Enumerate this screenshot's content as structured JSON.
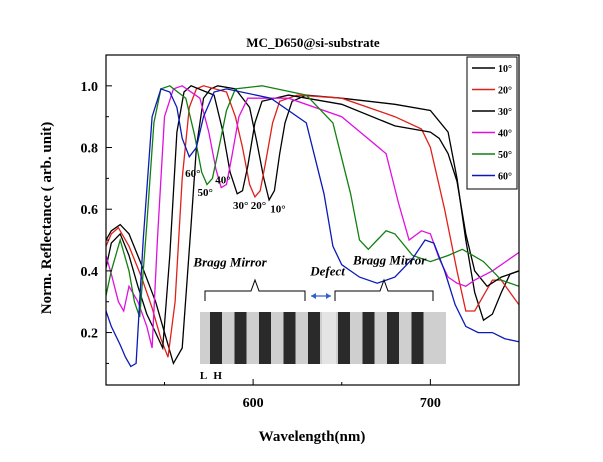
{
  "chart_data": {
    "type": "line",
    "title": "MC_D650@si-substrate",
    "xlabel": "Wavelength(nm)",
    "ylabel": "Norm. Reflectance ( arb. unit)",
    "xlim": [
      517,
      750
    ],
    "ylim": [
      0.03,
      1.1
    ],
    "xticks": [
      600,
      700
    ],
    "yticks": [
      0.2,
      0.4,
      0.6,
      0.8,
      1.0
    ],
    "ytick_labels": [
      "0.2",
      "0.4",
      "0.6",
      "0.8",
      "1.0"
    ],
    "grid": false,
    "legend_position": "top-right",
    "series": [
      {
        "name": "10°",
        "color": "#000000",
        "points": [
          [
            517,
            0.5
          ],
          [
            520,
            0.53
          ],
          [
            525,
            0.55
          ],
          [
            530,
            0.52
          ],
          [
            537,
            0.42
          ],
          [
            545,
            0.3
          ],
          [
            550,
            0.2
          ],
          [
            555,
            0.1
          ],
          [
            560,
            0.15
          ],
          [
            565,
            0.55
          ],
          [
            568,
            0.8
          ],
          [
            572,
            0.96
          ],
          [
            576,
            0.99
          ],
          [
            580,
            1.0
          ],
          [
            590,
            0.99
          ],
          [
            598,
            0.93
          ],
          [
            602,
            0.82
          ],
          [
            606,
            0.7
          ],
          [
            609,
            0.63
          ],
          [
            612,
            0.66
          ],
          [
            615,
            0.78
          ],
          [
            618,
            0.88
          ],
          [
            622,
            0.95
          ],
          [
            630,
            0.97
          ],
          [
            650,
            0.96
          ],
          [
            680,
            0.94
          ],
          [
            700,
            0.92
          ],
          [
            710,
            0.85
          ],
          [
            715,
            0.7
          ],
          [
            720,
            0.5
          ],
          [
            725,
            0.33
          ],
          [
            730,
            0.24
          ],
          [
            735,
            0.26
          ],
          [
            740,
            0.33
          ],
          [
            745,
            0.39
          ],
          [
            750,
            0.4
          ]
        ]
      },
      {
        "name": "20°",
        "color": "#e0201a",
        "points": [
          [
            517,
            0.48
          ],
          [
            520,
            0.52
          ],
          [
            524,
            0.54
          ],
          [
            530,
            0.48
          ],
          [
            537,
            0.38
          ],
          [
            543,
            0.28
          ],
          [
            548,
            0.18
          ],
          [
            552,
            0.12
          ],
          [
            556,
            0.3
          ],
          [
            560,
            0.7
          ],
          [
            564,
            0.93
          ],
          [
            568,
            0.99
          ],
          [
            572,
            1.0
          ],
          [
            585,
            0.98
          ],
          [
            590,
            0.9
          ],
          [
            594,
            0.8
          ],
          [
            598,
            0.68
          ],
          [
            601,
            0.64
          ],
          [
            604,
            0.66
          ],
          [
            607,
            0.75
          ],
          [
            611,
            0.88
          ],
          [
            615,
            0.95
          ],
          [
            625,
            0.97
          ],
          [
            650,
            0.96
          ],
          [
            680,
            0.9
          ],
          [
            695,
            0.86
          ],
          [
            700,
            0.8
          ],
          [
            708,
            0.6
          ],
          [
            715,
            0.4
          ],
          [
            720,
            0.27
          ],
          [
            725,
            0.27
          ],
          [
            730,
            0.32
          ],
          [
            735,
            0.37
          ],
          [
            740,
            0.37
          ],
          [
            745,
            0.33
          ],
          [
            750,
            0.29
          ]
        ]
      },
      {
        "name": "30°",
        "color": "#000000",
        "points": [
          [
            517,
            0.41
          ],
          [
            520,
            0.49
          ],
          [
            525,
            0.52
          ],
          [
            530,
            0.45
          ],
          [
            535,
            0.35
          ],
          [
            540,
            0.26
          ],
          [
            545,
            0.2
          ],
          [
            549,
            0.15
          ],
          [
            553,
            0.45
          ],
          [
            557,
            0.85
          ],
          [
            561,
            0.98
          ],
          [
            565,
            1.0
          ],
          [
            578,
            0.97
          ],
          [
            583,
            0.85
          ],
          [
            587,
            0.72
          ],
          [
            591,
            0.65
          ],
          [
            594,
            0.66
          ],
          [
            597,
            0.74
          ],
          [
            601,
            0.88
          ],
          [
            605,
            0.95
          ],
          [
            620,
            0.97
          ],
          [
            650,
            0.94
          ],
          [
            680,
            0.87
          ],
          [
            700,
            0.85
          ],
          [
            705,
            0.83
          ],
          [
            710,
            0.78
          ],
          [
            715,
            0.69
          ],
          [
            720,
            0.52
          ],
          [
            725,
            0.4
          ],
          [
            732,
            0.35
          ],
          [
            740,
            0.38
          ],
          [
            750,
            0.4
          ]
        ]
      },
      {
        "name": "40°",
        "color": "#e010e0",
        "points": [
          [
            517,
            0.45
          ],
          [
            520,
            0.39
          ],
          [
            524,
            0.3
          ],
          [
            527,
            0.27
          ],
          [
            530,
            0.35
          ],
          [
            535,
            0.3
          ],
          [
            540,
            0.22
          ],
          [
            543,
            0.15
          ],
          [
            546,
            0.5
          ],
          [
            550,
            0.9
          ],
          [
            555,
            0.99
          ],
          [
            560,
            1.0
          ],
          [
            570,
            0.96
          ],
          [
            575,
            0.85
          ],
          [
            579,
            0.73
          ],
          [
            582,
            0.67
          ],
          [
            585,
            0.68
          ],
          [
            588,
            0.77
          ],
          [
            592,
            0.9
          ],
          [
            597,
            0.96
          ],
          [
            620,
            0.96
          ],
          [
            650,
            0.9
          ],
          [
            675,
            0.78
          ],
          [
            682,
            0.62
          ],
          [
            688,
            0.5
          ],
          [
            695,
            0.53
          ],
          [
            700,
            0.52
          ],
          [
            705,
            0.44
          ],
          [
            710,
            0.38
          ],
          [
            715,
            0.36
          ],
          [
            720,
            0.35
          ],
          [
            725,
            0.37
          ],
          [
            735,
            0.4
          ],
          [
            750,
            0.46
          ]
        ]
      },
      {
        "name": "50°",
        "color": "#118011",
        "points": [
          [
            517,
            0.32
          ],
          [
            520,
            0.4
          ],
          [
            525,
            0.5
          ],
          [
            530,
            0.4
          ],
          [
            533,
            0.3
          ],
          [
            536,
            0.25
          ],
          [
            540,
            0.55
          ],
          [
            544,
            0.88
          ],
          [
            548,
            0.99
          ],
          [
            553,
            1.0
          ],
          [
            562,
            0.96
          ],
          [
            567,
            0.84
          ],
          [
            571,
            0.72
          ],
          [
            574,
            0.68
          ],
          [
            577,
            0.7
          ],
          [
            580,
            0.78
          ],
          [
            585,
            0.92
          ],
          [
            590,
            0.99
          ],
          [
            605,
            1.0
          ],
          [
            630,
            0.97
          ],
          [
            645,
            0.88
          ],
          [
            655,
            0.65
          ],
          [
            660,
            0.5
          ],
          [
            665,
            0.47
          ],
          [
            670,
            0.5
          ],
          [
            675,
            0.53
          ],
          [
            680,
            0.52
          ],
          [
            690,
            0.45
          ],
          [
            700,
            0.43
          ],
          [
            710,
            0.45
          ],
          [
            718,
            0.47
          ],
          [
            730,
            0.43
          ],
          [
            740,
            0.37
          ],
          [
            750,
            0.35
          ]
        ]
      },
      {
        "name": "60°",
        "color": "#0a1ab8",
        "points": [
          [
            517,
            0.27
          ],
          [
            520,
            0.22
          ],
          [
            525,
            0.16
          ],
          [
            528,
            0.12
          ],
          [
            531,
            0.09
          ],
          [
            534,
            0.1
          ],
          [
            538,
            0.5
          ],
          [
            543,
            0.9
          ],
          [
            548,
            0.99
          ],
          [
            553,
            0.98
          ],
          [
            557,
            0.93
          ],
          [
            560,
            0.83
          ],
          [
            564,
            0.77
          ],
          [
            568,
            0.8
          ],
          [
            572,
            0.9
          ],
          [
            578,
            0.98
          ],
          [
            585,
            0.99
          ],
          [
            610,
            0.96
          ],
          [
            630,
            0.88
          ],
          [
            640,
            0.65
          ],
          [
            645,
            0.48
          ],
          [
            650,
            0.42
          ],
          [
            660,
            0.38
          ],
          [
            670,
            0.36
          ],
          [
            680,
            0.38
          ],
          [
            690,
            0.44
          ],
          [
            697,
            0.5
          ],
          [
            702,
            0.49
          ],
          [
            708,
            0.4
          ],
          [
            714,
            0.29
          ],
          [
            720,
            0.22
          ],
          [
            727,
            0.2
          ],
          [
            735,
            0.2
          ],
          [
            742,
            0.18
          ],
          [
            750,
            0.17
          ]
        ]
      }
    ],
    "annotations": [
      {
        "text": "60°",
        "x": 566,
        "y": 0.705
      },
      {
        "text": "50°",
        "x": 573,
        "y": 0.643
      },
      {
        "text": "40°",
        "x": 583,
        "y": 0.683
      },
      {
        "text": "30°",
        "x": 593,
        "y": 0.6
      },
      {
        "text": "20°",
        "x": 603,
        "y": 0.6
      },
      {
        "text": "10°",
        "x": 614,
        "y": 0.59
      },
      {
        "text": "Bragg Mirror",
        "x": 587,
        "y": 0.415
      },
      {
        "text": "Defect",
        "x": 642,
        "y": 0.385
      },
      {
        "text": "Bragg Mirror",
        "x": 677,
        "y": 0.42
      },
      {
        "text": "L",
        "x": 572,
        "y": 0.05
      },
      {
        "text": "H",
        "x": 580,
        "y": 0.05
      }
    ],
    "inset": {
      "description_colors": {
        "light": "#cfcfcf",
        "dark": "#2a2a2a"
      },
      "layers_left": 9,
      "layers_right": 8
    }
  }
}
